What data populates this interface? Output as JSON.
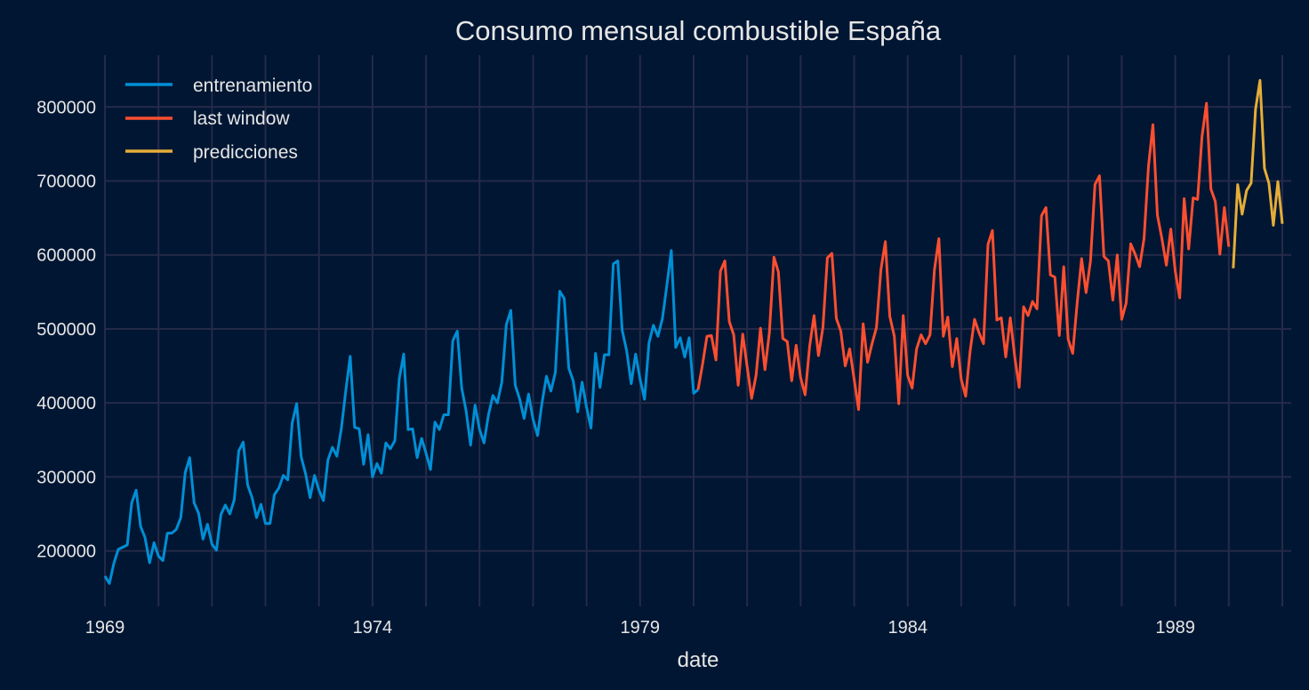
{
  "chart_data": {
    "type": "line",
    "title": "Consumo mensual combustible España",
    "xlabel": "date",
    "ylabel": "",
    "x_start": "1969-01",
    "x_end": "1991-03",
    "x_ticks": [
      "1969",
      "1974",
      "1979",
      "1984",
      "1989"
    ],
    "x_minor_ticks": "yearly",
    "ylim": [
      125000,
      870000
    ],
    "y_ticks": [
      "200000",
      "300000",
      "400000",
      "500000",
      "600000",
      "700000",
      "800000"
    ],
    "grid": true,
    "legend_position": "top-left",
    "legend": [
      "entrenamiento",
      "last window",
      "predicciones"
    ],
    "series": [
      {
        "name": "entrenamiento",
        "color": "#008fd5",
        "start": "1969-01",
        "values": [
          166000,
          156000,
          183000,
          202000,
          205000,
          208000,
          265000,
          282000,
          233000,
          218000,
          184000,
          211000,
          193000,
          187000,
          224000,
          224000,
          229000,
          245000,
          306000,
          326000,
          265000,
          251000,
          216000,
          236000,
          209000,
          201000,
          249000,
          262000,
          250000,
          269000,
          335000,
          347000,
          289000,
          272000,
          245000,
          263000,
          237000,
          237000,
          276000,
          285000,
          302000,
          296000,
          373000,
          399000,
          327000,
          304000,
          272000,
          302000,
          282000,
          268000,
          323000,
          340000,
          328000,
          365000,
          416000,
          463000,
          367000,
          365000,
          317000,
          357000,
          300000,
          318000,
          305000,
          346000,
          338000,
          349000,
          433000,
          466000,
          364000,
          365000,
          326000,
          352000,
          332000,
          310000,
          374000,
          364000,
          384000,
          384000,
          484000,
          497000,
          420000,
          389000,
          343000,
          397000,
          364000,
          346000,
          384000,
          410000,
          400000,
          428000,
          506000,
          525000,
          424000,
          405000,
          379000,
          412000,
          378000,
          356000,
          400000,
          436000,
          416000,
          441000,
          551000,
          541000,
          447000,
          430000,
          388000,
          428000,
          394000,
          366000,
          467000,
          421000,
          465000,
          465000,
          588000,
          592000,
          498000,
          470000,
          426000,
          466000,
          432000,
          405000,
          481000,
          505000,
          490000,
          514000,
          559000,
          606000,
          475000,
          488000,
          462000,
          488000,
          413000,
          418000
        ]
      },
      {
        "name": "last window",
        "color": "#fc4f30",
        "start": "1980-02",
        "values": [
          418000,
          452000,
          490000,
          491000,
          458000,
          578000,
          592000,
          510000,
          492000,
          424000,
          493000,
          449000,
          406000,
          437000,
          501000,
          445000,
          495000,
          597000,
          577000,
          487000,
          483000,
          430000,
          478000,
          434000,
          411000,
          476000,
          518000,
          464000,
          502000,
          596000,
          602000,
          514000,
          497000,
          450000,
          473000,
          432000,
          391000,
          507000,
          455000,
          480000,
          502000,
          580000,
          618000,
          517000,
          490000,
          399000,
          518000,
          437000,
          420000,
          473000,
          492000,
          480000,
          492000,
          580000,
          622000,
          490000,
          516000,
          449000,
          487000,
          432000,
          409000,
          470000,
          513000,
          495000,
          480000,
          614000,
          633000,
          512000,
          515000,
          462000,
          515000,
          462000,
          421000,
          530000,
          518000,
          537000,
          527000,
          653000,
          664000,
          573000,
          570000,
          491000,
          584000,
          486000,
          467000,
          535000,
          595000,
          549000,
          592000,
          695000,
          707000,
          598000,
          592000,
          539000,
          600000,
          513000,
          535000,
          615000,
          601000,
          584000,
          622000,
          720000,
          776000,
          654000,
          622000,
          586000,
          635000,
          578000,
          542000,
          676000,
          608000,
          677000,
          675000,
          760000,
          805000,
          689000,
          672000,
          601000,
          664000,
          611000
        ]
      },
      {
        "name": "predicciones",
        "color": "#e5ae38",
        "start": "1990-02",
        "values": [
          582000,
          695000,
          655000,
          687000,
          697000,
          797000,
          836000,
          717000,
          697000,
          640000,
          699000,
          642000
        ]
      }
    ]
  }
}
